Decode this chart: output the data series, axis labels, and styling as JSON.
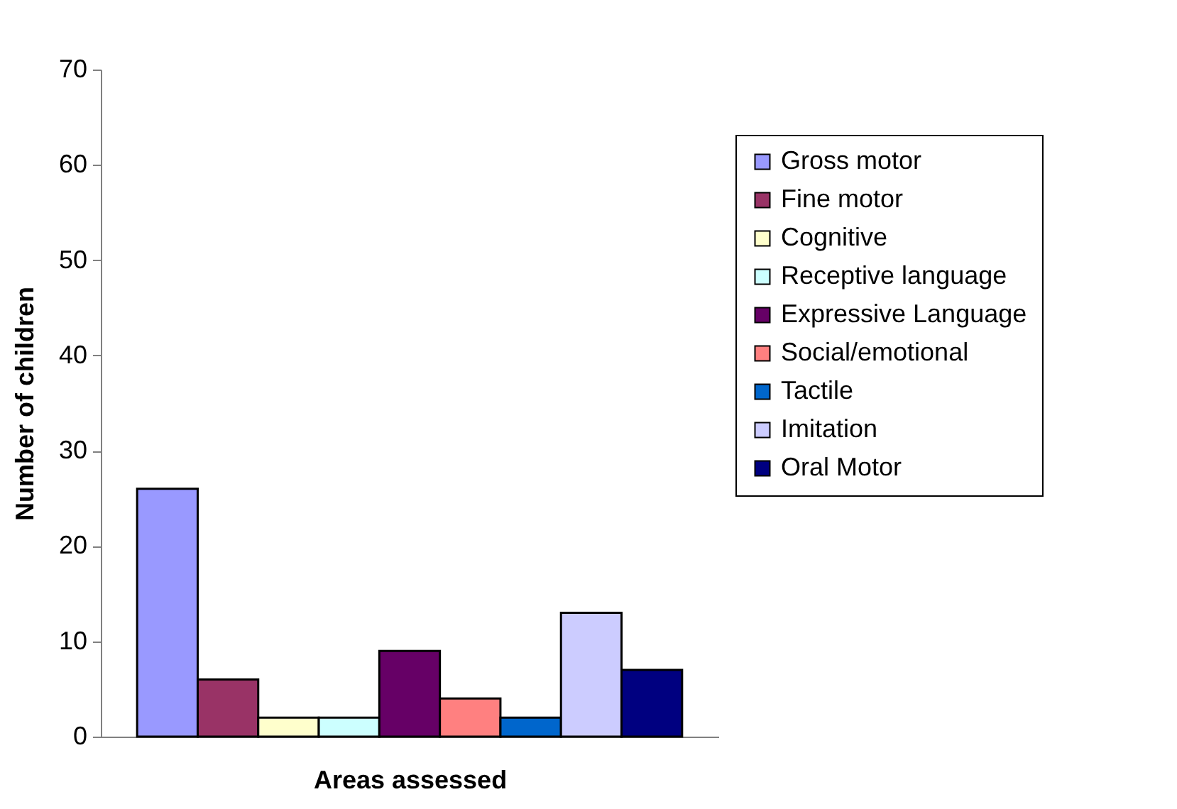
{
  "chart_data": {
    "type": "bar",
    "xlabel": "Areas assessed",
    "ylabel": "Number of children",
    "categories": [
      null
    ],
    "series": [
      {
        "name": "Gross motor",
        "color": "#9999ff",
        "values": [
          26
        ]
      },
      {
        "name": "Fine motor",
        "color": "#993366",
        "values": [
          6
        ]
      },
      {
        "name": "Cognitive",
        "color": "#ffffcc",
        "values": [
          2
        ]
      },
      {
        "name": "Receptive language",
        "color": "#ccffff",
        "values": [
          2
        ]
      },
      {
        "name": "Expressive Language",
        "color": "#660066",
        "values": [
          9
        ]
      },
      {
        "name": "Social/emotional",
        "color": "#ff8080",
        "values": [
          4
        ]
      },
      {
        "name": "Tactile",
        "color": "#0066cc",
        "values": [
          2
        ]
      },
      {
        "name": "Imitation",
        "color": "#ccccff",
        "values": [
          13
        ]
      },
      {
        "name": "Oral Motor",
        "color": "#000080",
        "values": [
          7
        ]
      }
    ],
    "ylim": [
      0,
      70
    ],
    "yticks": [
      0,
      10,
      20,
      30,
      40,
      50,
      60,
      70
    ],
    "grid": false,
    "legend": "right"
  }
}
